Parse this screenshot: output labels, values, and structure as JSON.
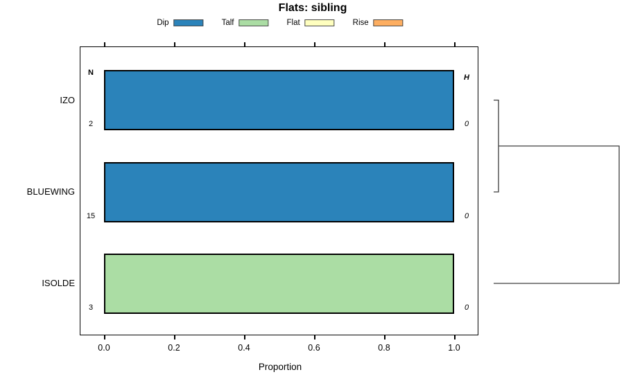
{
  "title": "Flats: sibling",
  "axis": {
    "xlabel": "Proportion",
    "tick_labels": [
      "0.0",
      "0.2",
      "0.4",
      "0.6",
      "0.8",
      "1.0"
    ],
    "tick_values": [
      0,
      0.2,
      0.4,
      0.6,
      0.8,
      1.0
    ]
  },
  "annotations": {
    "left_header": "N",
    "right_header": "H"
  },
  "legend": {
    "items": [
      {
        "label": "Dip",
        "color": "#2b83ba"
      },
      {
        "label": "Talf",
        "color": "#abdda4"
      },
      {
        "label": "Flat",
        "color": "#ffffbf"
      },
      {
        "label": "Rise",
        "color": "#fdae61"
      }
    ]
  },
  "chart_data": {
    "type": "bar",
    "orientation": "horizontal",
    "stacked": true,
    "title": "Flats: sibling",
    "xlabel": "Proportion",
    "xlim": [
      0,
      1
    ],
    "xticks": [
      0,
      0.2,
      0.4,
      0.6,
      0.8,
      1.0
    ],
    "grid": false,
    "legend_position": "top",
    "legend": [
      "Dip",
      "Talf",
      "Flat",
      "Rise"
    ],
    "colors": {
      "Dip": "#2b83ba",
      "Talf": "#abdda4",
      "Flat": "#ffffbf",
      "Rise": "#fdae61"
    },
    "categories": [
      "IZO",
      "BLUEWING",
      "ISOLDE"
    ],
    "n_label": "N",
    "h_label": "H",
    "rows": [
      {
        "category": "IZO",
        "n": "2",
        "h": "0",
        "segments": [
          {
            "label": "Dip",
            "value": 1.0
          }
        ]
      },
      {
        "category": "BLUEWING",
        "n": "15",
        "h": "0",
        "segments": [
          {
            "label": "Dip",
            "value": 1.0
          }
        ]
      },
      {
        "category": "ISOLDE",
        "n": "3",
        "h": "0",
        "segments": [
          {
            "label": "Talf",
            "value": 1.0
          }
        ]
      }
    ],
    "dendrogram": {
      "present": true,
      "side": "right",
      "merges": [
        {
          "members": [
            "IZO",
            "BLUEWING"
          ],
          "relative_height": 0.04
        },
        {
          "members": [
            "IZO+BLUEWING",
            "ISOLDE"
          ],
          "relative_height": 1.0
        }
      ]
    }
  }
}
